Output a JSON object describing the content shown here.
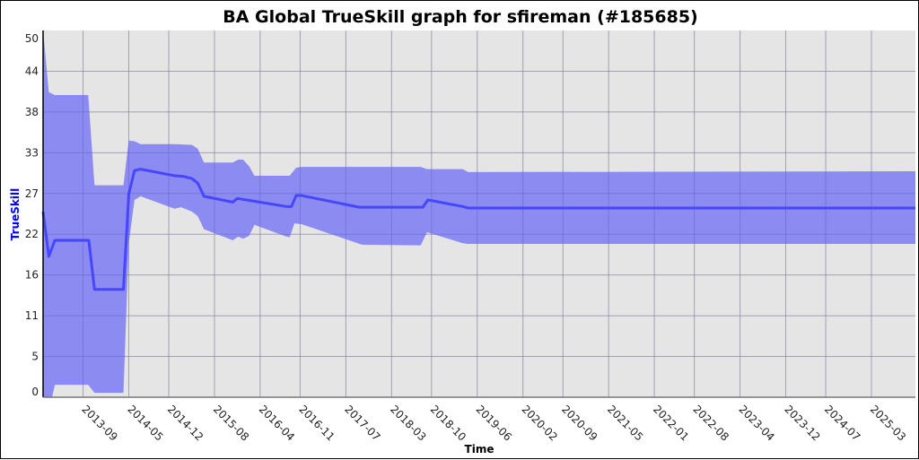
{
  "chart_data": {
    "type": "area",
    "title": "BA Global TrueSkill graph for sfireman (#185685)",
    "xlabel": "Time",
    "ylabel": "TrueSkill",
    "xlim": [
      "2013-02-01",
      "2025-10-22"
    ],
    "ylim": [
      0,
      50
    ],
    "grid": true,
    "legend": "none",
    "colors": {
      "line": "#4646ff",
      "band": "#8b8bf2",
      "background": "#e5e5e5",
      "grid": "#c4c4c4",
      "ylabel": "#0000ff"
    },
    "x_ticks": [
      "2013-09",
      "2014-05",
      "2014-12",
      "2015-08",
      "2016-04",
      "2016-11",
      "2017-07",
      "2018-03",
      "2018-10",
      "2019-06",
      "2020-02",
      "2020-09",
      "2021-05",
      "2022-01",
      "2022-08",
      "2023-04",
      "2023-12",
      "2024-07",
      "2025-03"
    ],
    "y_ticks": [
      {
        "value": 0,
        "label": "0"
      },
      {
        "value": 5.56,
        "label": "5"
      },
      {
        "value": 11.11,
        "label": "11"
      },
      {
        "value": 16.67,
        "label": "16"
      },
      {
        "value": 22.22,
        "label": "22"
      },
      {
        "value": 27.78,
        "label": "27"
      },
      {
        "value": 33.33,
        "label": "33"
      },
      {
        "value": 38.89,
        "label": "38"
      },
      {
        "value": 44.44,
        "label": "44"
      },
      {
        "value": 50,
        "label": "50"
      }
    ],
    "series": [
      {
        "role": "mean",
        "points": [
          [
            "2013-02-01",
            25.3
          ],
          [
            "2013-03-01",
            19.2
          ],
          [
            "2013-04-03",
            21.4
          ],
          [
            "2013-10-01",
            21.4
          ],
          [
            "2013-11-01",
            14.7
          ],
          [
            "2014-04-03",
            14.7
          ],
          [
            "2014-05-01",
            27.7
          ],
          [
            "2014-06-01",
            30.9
          ],
          [
            "2014-07-03",
            31.1
          ],
          [
            "2015-01-01",
            30.2
          ],
          [
            "2015-02-20",
            30.1
          ],
          [
            "2015-04-03",
            29.8
          ],
          [
            "2015-05-03",
            29.2
          ],
          [
            "2015-06-06",
            27.4
          ],
          [
            "2015-11-07",
            26.6
          ],
          [
            "2015-12-01",
            27.1
          ],
          [
            "2016-03-06",
            26.7
          ],
          [
            "2016-08-19",
            26.0
          ],
          [
            "2016-09-15",
            26.0
          ],
          [
            "2016-10-10",
            27.5
          ],
          [
            "2016-11-08",
            27.5
          ],
          [
            "2017-09-12",
            25.9
          ],
          [
            "2018-08-15",
            25.9
          ],
          [
            "2018-09-12",
            26.9
          ],
          [
            "2019-03-15",
            26.0
          ],
          [
            "2019-04-13",
            25.8
          ],
          [
            "2025-10-22",
            25.8
          ]
        ]
      },
      {
        "role": "upper",
        "points": [
          [
            "2013-02-01",
            50.0
          ],
          [
            "2013-03-01",
            41.6
          ],
          [
            "2013-04-03",
            41.2
          ],
          [
            "2013-09-28",
            41.2
          ],
          [
            "2013-11-01",
            28.9
          ],
          [
            "2014-04-03",
            28.9
          ],
          [
            "2014-05-01",
            35.0
          ],
          [
            "2014-06-01",
            34.9
          ],
          [
            "2014-07-03",
            34.5
          ],
          [
            "2015-01-01",
            34.5
          ],
          [
            "2015-04-03",
            34.4
          ],
          [
            "2015-05-03",
            33.9
          ],
          [
            "2015-06-06",
            32.0
          ],
          [
            "2015-11-07",
            32.0
          ],
          [
            "2015-12-06",
            32.4
          ],
          [
            "2016-01-01",
            32.4
          ],
          [
            "2016-02-03",
            31.5
          ],
          [
            "2016-03-01",
            30.2
          ],
          [
            "2016-09-06",
            30.2
          ],
          [
            "2016-10-10",
            31.3
          ],
          [
            "2016-11-08",
            31.4
          ],
          [
            "2018-08-04",
            31.4
          ],
          [
            "2018-09-07",
            31.1
          ],
          [
            "2019-03-15",
            31.1
          ],
          [
            "2019-04-13",
            30.7
          ],
          [
            "2025-10-22",
            30.8
          ]
        ]
      },
      {
        "role": "lower",
        "points": [
          [
            "2013-02-01",
            0.0
          ],
          [
            "2013-03-18",
            0.0
          ],
          [
            "2013-04-03",
            1.7
          ],
          [
            "2013-09-28",
            1.7
          ],
          [
            "2013-11-01",
            0.6
          ],
          [
            "2014-04-03",
            0.6
          ],
          [
            "2014-05-01",
            21.0
          ],
          [
            "2014-06-01",
            26.9
          ],
          [
            "2014-07-03",
            27.4
          ],
          [
            "2015-01-01",
            25.7
          ],
          [
            "2015-02-06",
            25.9
          ],
          [
            "2015-04-03",
            25.3
          ],
          [
            "2015-05-03",
            24.7
          ],
          [
            "2015-06-06",
            22.9
          ],
          [
            "2015-11-07",
            21.4
          ],
          [
            "2015-12-06",
            21.9
          ],
          [
            "2016-01-01",
            21.6
          ],
          [
            "2016-02-03",
            22.0
          ],
          [
            "2016-03-01",
            23.5
          ],
          [
            "2016-08-19",
            21.9
          ],
          [
            "2016-09-06",
            21.8
          ],
          [
            "2016-10-01",
            23.7
          ],
          [
            "2016-11-08",
            23.6
          ],
          [
            "2017-09-03",
            21.0
          ],
          [
            "2017-09-26",
            20.8
          ],
          [
            "2018-08-04",
            20.7
          ],
          [
            "2018-09-07",
            22.5
          ],
          [
            "2019-03-15",
            21.0
          ],
          [
            "2019-04-13",
            20.9
          ],
          [
            "2025-10-22",
            20.9
          ]
        ]
      }
    ]
  }
}
